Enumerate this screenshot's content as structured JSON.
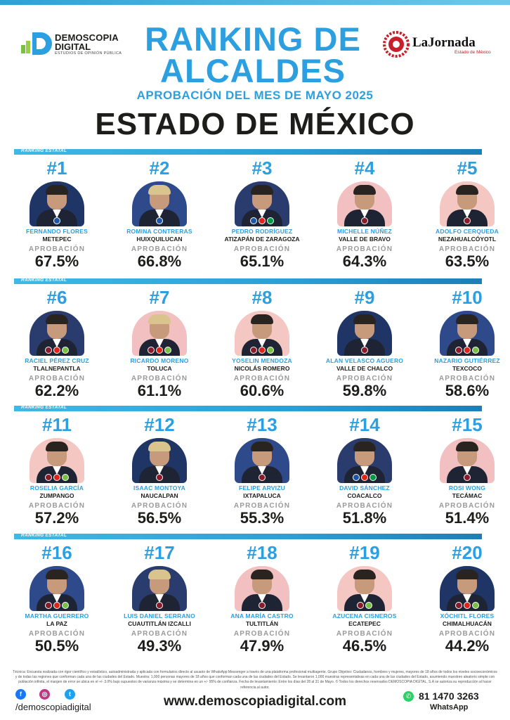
{
  "header": {
    "brand_left_line1": "DEMOSCOPIA",
    "brand_left_line2": "DIGITAL",
    "brand_left_tagline": "ESTUDIOS DE OPINIÓN PÚBLICA",
    "brand_right_name": "LaJornada",
    "brand_right_sub": "Estado de México",
    "title": "RANKING DE ALCALDES",
    "subtitle": "APROBACIÓN DEL MES DE MAYO 2025",
    "state": "ESTADO DE MÉXICO"
  },
  "colors": {
    "accent": "#2b9fe0",
    "dark": "#1d1d1b",
    "muted": "#9a9a9a",
    "bar": "#2a9fd6"
  },
  "section_label": "RANKING ESTATAL",
  "approval_label": "APROBACIÓN",
  "rankings": [
    {
      "rank": "#1",
      "name": "FERNANDO FLORES",
      "municipality": "METEPEC",
      "approval": "67.5%"
    },
    {
      "rank": "#2",
      "name": "ROMINA CONTRERAS",
      "municipality": "HUIXQUILUCAN",
      "approval": "66.8%"
    },
    {
      "rank": "#3",
      "name": "PEDRO RODRÍGUEZ",
      "municipality": "ATIZAPÁN DE ZARAGOZA",
      "approval": "65.1%"
    },
    {
      "rank": "#4",
      "name": "MICHELLE NÚÑEZ",
      "municipality": "VALLE DE BRAVO",
      "approval": "64.3%"
    },
    {
      "rank": "#5",
      "name": "ADOLFO CERQUEDA",
      "municipality": "NEZAHUALCÓYOTL",
      "approval": "63.5%"
    },
    {
      "rank": "#6",
      "name": "RACIEL PÉREZ CRUZ",
      "municipality": "TLALNEPANTLA",
      "approval": "62.2%"
    },
    {
      "rank": "#7",
      "name": "RICARDO MORENO",
      "municipality": "TOLUCA",
      "approval": "61.1%"
    },
    {
      "rank": "#8",
      "name": "YOSELIN MENDOZA",
      "municipality": "NICOLÁS ROMERO",
      "approval": "60.6%"
    },
    {
      "rank": "#9",
      "name": "ALAN VELASCO AGUERO",
      "municipality": "VALLE DE CHALCO",
      "approval": "59.8%"
    },
    {
      "rank": "#10",
      "name": "NAZARIO GUTIÉRREZ",
      "municipality": "TEXCOCO",
      "approval": "58.6%"
    },
    {
      "rank": "#11",
      "name": "ROSELIA GARCÍA",
      "municipality": "ZUMPANGO",
      "approval": "57.2%"
    },
    {
      "rank": "#12",
      "name": "ISAAC MONTOYA",
      "municipality": "NAUCALPAN",
      "approval": "56.5%"
    },
    {
      "rank": "#13",
      "name": "FELIPE ARVIZU",
      "municipality": "IXTAPALUCA",
      "approval": "55.3%"
    },
    {
      "rank": "#14",
      "name": "DAVID SÁNCHEZ",
      "municipality": "COACALCO",
      "approval": "51.8%"
    },
    {
      "rank": "#15",
      "name": "ROSI WONG",
      "municipality": "TECÁMAC",
      "approval": "51.4%"
    },
    {
      "rank": "#16",
      "name": "MARTHA GUERRERO",
      "municipality": "LA PAZ",
      "approval": "50.5%"
    },
    {
      "rank": "#17",
      "name": "LUIS DANIEL SERRANO",
      "municipality": "CUAUTITLÁN IZCALLI",
      "approval": "49.3%"
    },
    {
      "rank": "#18",
      "name": "ANA MARÍA CASTRO",
      "municipality": "TULTITLÁN",
      "approval": "47.9%"
    },
    {
      "rank": "#19",
      "name": "AZUCENA CISNEROS",
      "municipality": "ECATEPEC",
      "approval": "46.5%"
    },
    {
      "rank": "#20",
      "name": "XÓCHITL FLORES",
      "municipality": "CHIMALHUACÁN",
      "approval": "44.2%"
    }
  ],
  "footer": {
    "footnote": "Técnica: Encuesta realizada con rigor científico y estadístico, autoadministrada y aplicada con formularios directo al usuario de WhatsApp Messenger a través de una plataforma profesional multiagente. Grupo Objetivo: Ciudadanos, hombres y mujeres, mayores de 18 años de todos los niveles socioeconómicos y de todas las regiones que conforman cada una de las ciudades del Estado. Muestra: 1,000 personas mayores de 18 años que conforman cada una de las ciudades del Estado. Se levantaron 1,000 muestras representativas en cada una de las ciudades del Estado, asumiendo muestreo aleatorio simple con población infinita, el margen de error se ubica en el +/- 3.0% bajo supuestos de varianza máxima y se determina en un +/- 95% de confianza. Fecha de levantamiento: Entre los días del 28 al 31 de Mayo. © Todos los derechos reservados DEMOSCOPIA DIGITAL, S.A se autoriza su reproducción al hacer referencia al autor.",
    "social_handle": "/demoscopiadigital",
    "website": "www.demoscopiadigital.com",
    "phone": "81 1470 3263",
    "whatsapp_label": "WhatsApp"
  }
}
